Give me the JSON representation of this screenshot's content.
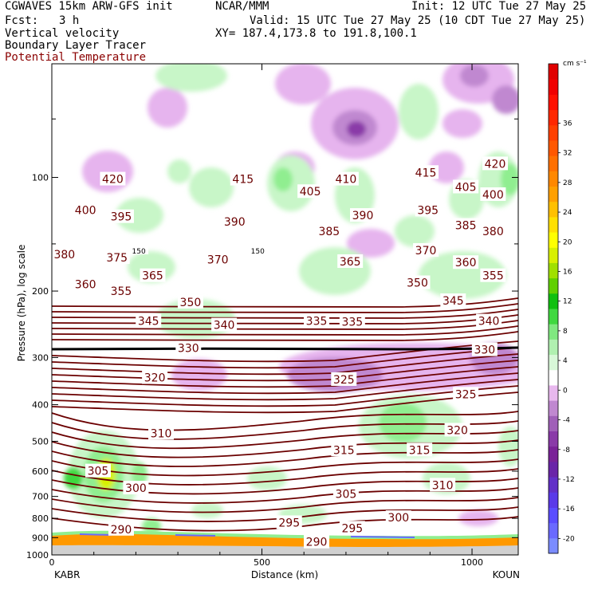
{
  "header": {
    "model": "CGWAVES 15km ARW-GFS init",
    "org": "NCAR/MMM",
    "init": "Init: 12 UTC Tue 27 May 25",
    "fcst_label": "Fcst:",
    "fcst_value": "3 h",
    "valid": "Valid: 15 UTC Tue 27 May 25 (10 CDT Tue 27 May 25)",
    "field1": "Vertical velocity",
    "field2": "Boundary Layer Tracer",
    "field3": "Potential Temperature",
    "xy": "XY= 187.4,173.8 to 191.8,100.1"
  },
  "colors": {
    "theta": "#6b0000",
    "field3_text": "#8b0000",
    "tropopause": "#000000",
    "pbl": "#ff9900"
  },
  "chart_data": {
    "type": "cross-section",
    "ylabel": "Pressure (hPa), log scale",
    "xlabel": "Distance (km)",
    "left_station": "KABR",
    "right_station": "KOUN",
    "xlim": [
      0,
      1110
    ],
    "ylim": [
      1000,
      50
    ],
    "yscale": "log",
    "x_ticks": [
      {
        "value": 0,
        "label": "0"
      },
      {
        "value": 500,
        "label": "500"
      },
      {
        "value": 1000,
        "label": "1000"
      }
    ],
    "y_ticks": [
      {
        "value": 100,
        "label": "100"
      },
      {
        "value": 200,
        "label": "200"
      },
      {
        "value": 300,
        "label": "300"
      },
      {
        "value": 400,
        "label": "400"
      },
      {
        "value": 500,
        "label": "500"
      },
      {
        "value": 600,
        "label": "600"
      },
      {
        "value": 700,
        "label": "700"
      },
      {
        "value": 800,
        "label": "800"
      },
      {
        "value": 900,
        "label": "900"
      },
      {
        "value": 1000,
        "label": "1000"
      }
    ],
    "colorbar": {
      "unit": "cm s⁻¹",
      "levels": [
        -22,
        -20,
        -18,
        -16,
        -14,
        -12,
        -10,
        -8,
        -6,
        -4,
        -2,
        2,
        4,
        6,
        8,
        10,
        12,
        14,
        16,
        18,
        20,
        22,
        24,
        26,
        28,
        30,
        32,
        34,
        36,
        38,
        40,
        42
      ],
      "colors": [
        "#7b8cff",
        "#6a6aff",
        "#5a4dff",
        "#5a3ae8",
        "#6230c8",
        "#6a24a8",
        "#7a2298",
        "#8a3aa8",
        "#a060b8",
        "#c088d0",
        "#e8b8ee",
        "#ffffff",
        "#d8f8d8",
        "#b0f0b0",
        "#80e880",
        "#40d840",
        "#10c010",
        "#60d000",
        "#a0e000",
        "#d8f000",
        "#ffff00",
        "#ffe000",
        "#ffc000",
        "#ffa000",
        "#ff8800",
        "#ff7000",
        "#ff5800",
        "#ff4000",
        "#ff2800",
        "#ff1000",
        "#f00000",
        "#e00000"
      ],
      "tick_labels": [
        {
          "value": 36,
          "label": "36"
        },
        {
          "value": 32,
          "label": "32"
        },
        {
          "value": 28,
          "label": "28"
        },
        {
          "value": 24,
          "label": "24"
        },
        {
          "value": 20,
          "label": "20"
        },
        {
          "value": 16,
          "label": "16"
        },
        {
          "value": 12,
          "label": "12"
        },
        {
          "value": 8,
          "label": "8"
        },
        {
          "value": 4,
          "label": "4"
        },
        {
          "value": 0,
          "label": "0"
        },
        {
          "value": -4,
          "label": "-4"
        },
        {
          "value": -8,
          "label": "-8"
        },
        {
          "value": -12,
          "label": "-12"
        },
        {
          "value": -16,
          "label": "-16"
        },
        {
          "value": -20,
          "label": "-20"
        }
      ]
    },
    "tropopause": {
      "label": "150",
      "pressure": 156
    },
    "theta_labels": [
      {
        "value": "420",
        "x": 145,
        "p": 101
      },
      {
        "value": "415",
        "x": 455,
        "p": 101
      },
      {
        "value": "410",
        "x": 700,
        "p": 101
      },
      {
        "value": "415",
        "x": 890,
        "p": 97
      },
      {
        "value": "420",
        "x": 1055,
        "p": 92
      },
      {
        "value": "405",
        "x": 615,
        "p": 109
      },
      {
        "value": "405",
        "x": 985,
        "p": 106
      },
      {
        "value": "400",
        "x": 80,
        "p": 122
      },
      {
        "value": "400",
        "x": 1050,
        "p": 111
      },
      {
        "value": "395",
        "x": 165,
        "p": 127
      },
      {
        "value": "390",
        "x": 435,
        "p": 131
      },
      {
        "value": "390",
        "x": 740,
        "p": 126
      },
      {
        "value": "395",
        "x": 895,
        "p": 122
      },
      {
        "value": "385",
        "x": 660,
        "p": 139
      },
      {
        "value": "385",
        "x": 985,
        "p": 134
      },
      {
        "value": "380",
        "x": 1050,
        "p": 139
      },
      {
        "value": "380",
        "x": 30,
        "p": 160
      },
      {
        "value": "375",
        "x": 155,
        "p": 163
      },
      {
        "value": "370",
        "x": 395,
        "p": 165
      },
      {
        "value": "370",
        "x": 890,
        "p": 156
      },
      {
        "value": "365",
        "x": 240,
        "p": 182
      },
      {
        "value": "365",
        "x": 710,
        "p": 167
      },
      {
        "value": "360",
        "x": 80,
        "p": 192
      },
      {
        "value": "360",
        "x": 985,
        "p": 168
      },
      {
        "value": "355",
        "x": 165,
        "p": 200
      },
      {
        "value": "355",
        "x": 1050,
        "p": 182
      },
      {
        "value": "350",
        "x": 330,
        "p": 214
      },
      {
        "value": "350",
        "x": 870,
        "p": 190
      },
      {
        "value": "345",
        "x": 230,
        "p": 240
      },
      {
        "value": "345",
        "x": 955,
        "p": 212
      },
      {
        "value": "340",
        "x": 410,
        "p": 246
      },
      {
        "value": "340",
        "x": 1040,
        "p": 240
      },
      {
        "value": "335",
        "x": 630,
        "p": 240
      },
      {
        "value": "335",
        "x": 715,
        "p": 241
      },
      {
        "value": "330",
        "x": 325,
        "p": 283
      },
      {
        "value": "330",
        "x": 1030,
        "p": 286
      },
      {
        "value": "320",
        "x": 245,
        "p": 339
      },
      {
        "value": "325",
        "x": 695,
        "p": 343
      },
      {
        "value": "325",
        "x": 985,
        "p": 375
      },
      {
        "value": "310",
        "x": 260,
        "p": 476
      },
      {
        "value": "320",
        "x": 965,
        "p": 467
      },
      {
        "value": "315",
        "x": 695,
        "p": 527
      },
      {
        "value": "315",
        "x": 875,
        "p": 527
      },
      {
        "value": "305",
        "x": 110,
        "p": 599
      },
      {
        "value": "300",
        "x": 200,
        "p": 665
      },
      {
        "value": "310",
        "x": 930,
        "p": 653
      },
      {
        "value": "305",
        "x": 700,
        "p": 690
      },
      {
        "value": "300",
        "x": 825,
        "p": 796
      },
      {
        "value": "295",
        "x": 565,
        "p": 821
      },
      {
        "value": "295",
        "x": 715,
        "p": 849
      },
      {
        "value": "290",
        "x": 165,
        "p": 855
      },
      {
        "value": "290",
        "x": 630,
        "p": 924
      }
    ]
  }
}
